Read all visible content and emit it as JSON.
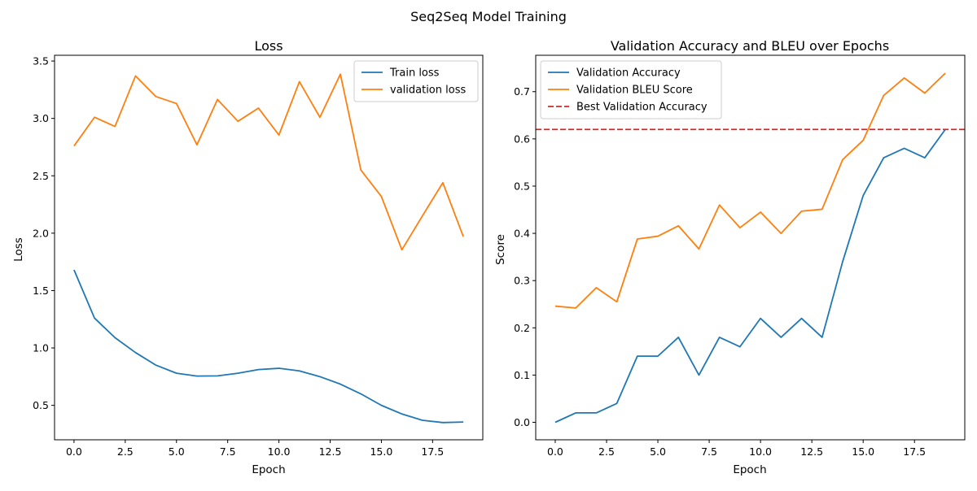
{
  "figure": {
    "suptitle": "Seq2Seq Model Training"
  },
  "chart_data": [
    {
      "type": "line",
      "title": "Loss",
      "xlabel": "Epoch",
      "ylabel": "Loss",
      "xlim": [
        -0.95,
        19.95
      ],
      "ylim": [
        0.2,
        3.55
      ],
      "xticks": [
        0.0,
        2.5,
        5.0,
        7.5,
        10.0,
        12.5,
        15.0,
        17.5
      ],
      "xtick_labels": [
        "0.0",
        "2.5",
        "5.0",
        "7.5",
        "10.0",
        "12.5",
        "15.0",
        "17.5"
      ],
      "yticks": [
        0.5,
        1.0,
        1.5,
        2.0,
        2.5,
        3.0,
        3.5
      ],
      "ytick_labels": [
        "0.5",
        "1.0",
        "1.5",
        "2.0",
        "2.5",
        "3.0",
        "3.5"
      ],
      "grid": false,
      "legend_position": "upper-right",
      "x": [
        0,
        1,
        2,
        3,
        4,
        5,
        6,
        7,
        8,
        9,
        10,
        11,
        12,
        13,
        14,
        15,
        16,
        17,
        18,
        19
      ],
      "series": [
        {
          "name": "Train loss",
          "color": "#1f77b4",
          "style": "solid",
          "values": [
            1.68,
            1.26,
            1.09,
            0.96,
            0.85,
            0.78,
            0.755,
            0.757,
            0.78,
            0.812,
            0.823,
            0.8,
            0.75,
            0.685,
            0.6,
            0.5,
            0.425,
            0.37,
            0.35,
            0.355
          ]
        },
        {
          "name": "validation loss",
          "color": "#ff7f0e",
          "style": "solid",
          "values": [
            2.76,
            3.01,
            2.93,
            3.37,
            3.19,
            3.13,
            2.77,
            3.165,
            2.975,
            3.09,
            2.855,
            3.32,
            3.01,
            3.385,
            2.55,
            2.32,
            1.855,
            2.15,
            2.44,
            1.97
          ]
        }
      ]
    },
    {
      "type": "line",
      "title": "Validation Accuracy and BLEU over Epochs",
      "xlabel": "Epoch",
      "ylabel": "Score",
      "xlim": [
        -0.95,
        19.95
      ],
      "ylim": [
        -0.037,
        0.777
      ],
      "xticks": [
        0.0,
        2.5,
        5.0,
        7.5,
        10.0,
        12.5,
        15.0,
        17.5
      ],
      "xtick_labels": [
        "0.0",
        "2.5",
        "5.0",
        "7.5",
        "10.0",
        "12.5",
        "15.0",
        "17.5"
      ],
      "yticks": [
        0.0,
        0.1,
        0.2,
        0.3,
        0.4,
        0.5,
        0.6,
        0.7
      ],
      "ytick_labels": [
        "0.0",
        "0.1",
        "0.2",
        "0.3",
        "0.4",
        "0.5",
        "0.6",
        "0.7"
      ],
      "grid": false,
      "legend_position": "upper-left",
      "x": [
        0,
        1,
        2,
        3,
        4,
        5,
        6,
        7,
        8,
        9,
        10,
        11,
        12,
        13,
        14,
        15,
        16,
        17,
        18,
        19
      ],
      "series": [
        {
          "name": "Validation Accuracy",
          "color": "#1f77b4",
          "style": "solid",
          "values": [
            0.0,
            0.02,
            0.02,
            0.04,
            0.14,
            0.14,
            0.18,
            0.1,
            0.18,
            0.16,
            0.22,
            0.18,
            0.22,
            0.18,
            0.34,
            0.48,
            0.56,
            0.58,
            0.56,
            0.62
          ]
        },
        {
          "name": "Validation BLEU Score",
          "color": "#ff7f0e",
          "style": "solid",
          "values": [
            0.246,
            0.242,
            0.285,
            0.255,
            0.388,
            0.394,
            0.416,
            0.367,
            0.46,
            0.412,
            0.445,
            0.4,
            0.447,
            0.451,
            0.556,
            0.597,
            0.692,
            0.729,
            0.697,
            0.739
          ]
        }
      ],
      "hlines": [
        {
          "name": "Best Validation Accuracy",
          "y": 0.62,
          "color": "#d62728",
          "style": "dashed"
        }
      ]
    }
  ]
}
